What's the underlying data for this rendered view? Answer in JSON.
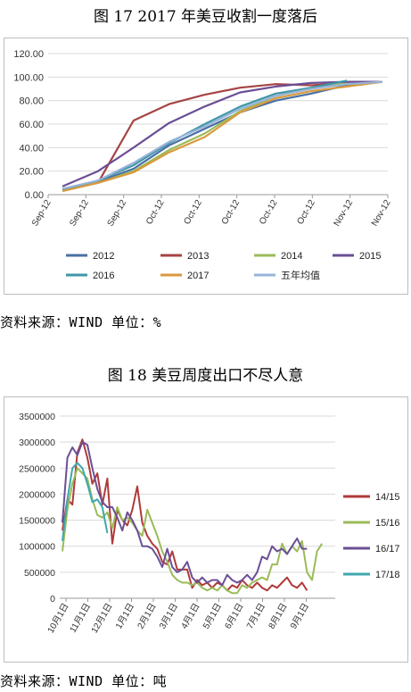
{
  "figures": [
    {
      "title": "图 17  2017 年美豆收割一度落后",
      "source": "资料来源：WIND  单位：%"
    },
    {
      "title": "图 18  美豆周度出口不尽人意",
      "source": "资料来源：WIND  单位：吨"
    }
  ],
  "chart_data": [
    {
      "type": "line",
      "title": "",
      "xlabel": "",
      "ylabel": "",
      "ylim": [
        0,
        120
      ],
      "yticks": [
        "0.00",
        "20.00",
        "40.00",
        "60.00",
        "80.00",
        "100.00",
        "120.00"
      ],
      "x_tick_labels": [
        "Sep-12",
        "Sep-12",
        "Sep-12",
        "Oct-12",
        "Oct-12",
        "Oct-12",
        "Oct-12",
        "Oct-12",
        "Nov-12",
        "Nov-12"
      ],
      "grid": true,
      "legend": "bottom",
      "series": [
        {
          "name": "2012",
          "color": "#4a6fa5",
          "values": [
            5,
            11,
            22,
            42,
            56,
            70,
            80,
            86,
            93,
            96
          ]
        },
        {
          "name": "2013",
          "color": "#a54444",
          "values": [
            4,
            10,
            63,
            77,
            85,
            91,
            94,
            93,
            95,
            96
          ]
        },
        {
          "name": "2014",
          "color": "#9bbb59",
          "values": [
            4,
            10,
            20,
            38,
            52,
            71,
            84,
            91,
            95,
            96
          ]
        },
        {
          "name": "2015",
          "color": "#6b4f96",
          "values": [
            7,
            20,
            40,
            61,
            75,
            87,
            92,
            95,
            96,
            96
          ]
        },
        {
          "name": "2016",
          "color": "#3f96a8",
          "values": [
            4,
            12,
            25,
            44,
            60,
            75,
            86,
            91,
            97,
            null
          ]
        },
        {
          "name": "2017",
          "color": "#d99a3d",
          "values": [
            3,
            10,
            19,
            36,
            49,
            70,
            82,
            88,
            92,
            96
          ]
        },
        {
          "name": "五年均值",
          "color": "#98b4d8",
          "values": [
            5,
            12,
            27,
            45,
            58,
            73,
            84,
            90,
            94,
            96
          ]
        }
      ]
    },
    {
      "type": "line",
      "title": "",
      "xlabel": "",
      "ylabel": "",
      "ylim": [
        0,
        3500000
      ],
      "yticks": [
        "0",
        "500000",
        "1000000",
        "1500000",
        "2000000",
        "2500000",
        "3000000",
        "3500000"
      ],
      "x_tick_labels": [
        "10月1日",
        "11月1日",
        "12月1日",
        "1月1日",
        "2月1日",
        "3月1日",
        "4月1日",
        "5月1日",
        "6月1日",
        "7月1日",
        "8月1日",
        "9月1日"
      ],
      "grid": true,
      "legend": "right",
      "series": [
        {
          "name": "14/15",
          "color": "#b03a3a",
          "values": [
            1300000,
            1900000,
            1800000,
            2800000,
            3050000,
            2700000,
            2200000,
            2400000,
            1800000,
            2300000,
            1050000,
            1700000,
            1500000,
            1400000,
            1700000,
            2150000,
            1450000,
            1200000,
            1050000,
            950000,
            700000,
            650000,
            900000,
            550000,
            550000,
            550000,
            200000,
            350000,
            250000,
            300000,
            200000,
            300000,
            250000,
            150000,
            250000,
            200000,
            350000,
            250000,
            200000,
            300000,
            200000,
            150000,
            250000,
            200000,
            300000,
            400000,
            250000,
            200000,
            300000,
            150000
          ]
        },
        {
          "name": "15/16",
          "color": "#9bbb59",
          "values": [
            900000,
            1700000,
            2200000,
            2500000,
            2400000,
            2300000,
            1900000,
            1600000,
            1550000,
            1650000,
            1350000,
            1750000,
            1500000,
            1550000,
            1450000,
            1300000,
            1200000,
            1700000,
            1450000,
            1200000,
            900000,
            700000,
            450000,
            350000,
            300000,
            300000,
            250000,
            300000,
            200000,
            150000,
            200000,
            150000,
            250000,
            150000,
            100000,
            100000,
            250000,
            200000,
            300000,
            350000,
            400000,
            350000,
            650000,
            650000,
            1050000,
            850000,
            1000000,
            900000,
            1100000,
            500000,
            350000,
            900000,
            1050000
          ]
        },
        {
          "name": "16/17",
          "color": "#6b4f96",
          "values": [
            1450000,
            2700000,
            2900000,
            2750000,
            3000000,
            2950000,
            2500000,
            2100000,
            1850000,
            1750000,
            1750000,
            1550000,
            1300000,
            1650000,
            1500000,
            1300000,
            1000000,
            1000000,
            950000,
            800000,
            600000,
            950000,
            600000,
            500000,
            550000,
            700000,
            400000,
            300000,
            400000,
            300000,
            350000,
            350000,
            250000,
            450000,
            350000,
            300000,
            350000,
            450000,
            350000,
            500000,
            800000,
            750000,
            1000000,
            900000,
            950000,
            850000,
            1000000,
            1150000,
            950000,
            950000
          ]
        },
        {
          "name": "17/18",
          "color": "#3fa8ad",
          "values": [
            1100000,
            1900000,
            2500000,
            2600000,
            2500000,
            2200000,
            1850000,
            1900000,
            1750000,
            1250000
          ]
        }
      ]
    }
  ]
}
